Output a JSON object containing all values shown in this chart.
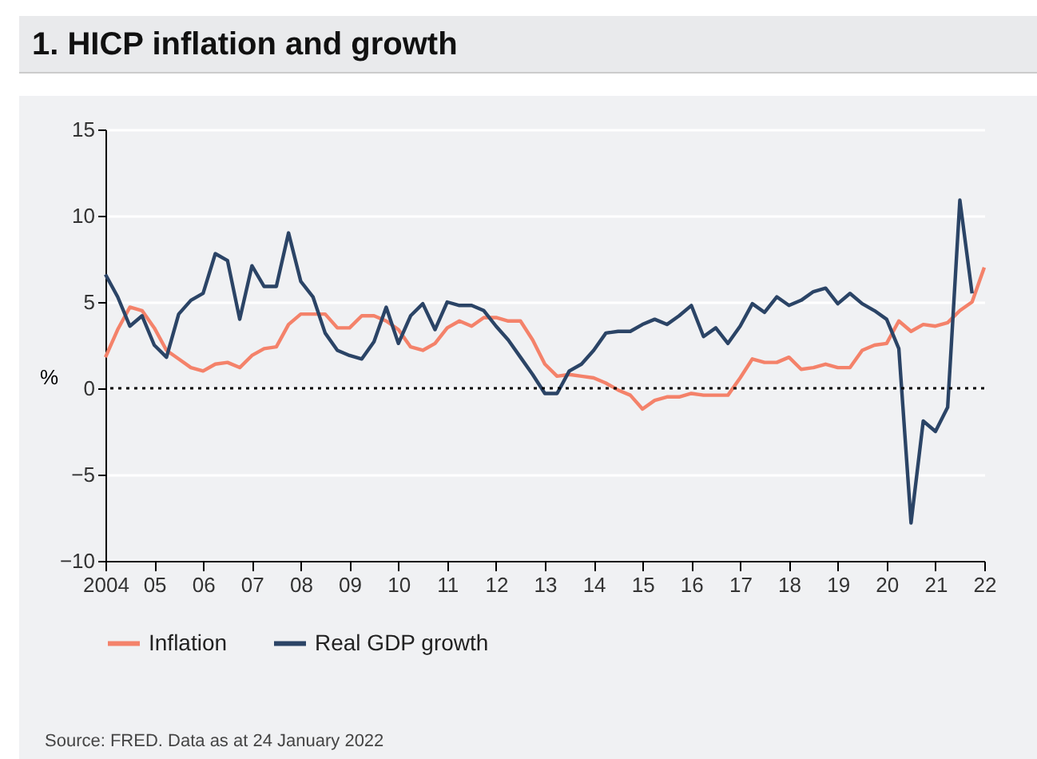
{
  "chart_data": {
    "type": "line",
    "title": "1. HICP inflation and growth",
    "ylabel": "%",
    "annotations": [
      "Source: FRED. Data as at 24 January 2022"
    ],
    "x": [
      2004,
      2004.25,
      2004.5,
      2004.75,
      2005,
      2005.25,
      2005.5,
      2005.75,
      2006,
      2006.25,
      2006.5,
      2006.75,
      2007,
      2007.25,
      2007.5,
      2007.75,
      2008,
      2008.25,
      2008.5,
      2008.75,
      2009,
      2009.25,
      2009.5,
      2009.75,
      2010,
      2010.25,
      2010.5,
      2010.75,
      2011,
      2011.25,
      2011.5,
      2011.75,
      2012,
      2012.25,
      2012.5,
      2012.75,
      2013,
      2013.25,
      2013.5,
      2013.75,
      2014,
      2014.25,
      2014.5,
      2014.75,
      2015,
      2015.25,
      2015.5,
      2015.75,
      2016,
      2016.25,
      2016.5,
      2016.75,
      2017,
      2017.25,
      2017.5,
      2017.75,
      2018,
      2018.25,
      2018.5,
      2018.75,
      2019,
      2019.25,
      2019.5,
      2019.75,
      2020,
      2020.25,
      2020.5,
      2020.75,
      2021,
      2021.25,
      2021.5,
      2021.75,
      2022
    ],
    "series": [
      {
        "name": "Inflation",
        "color": "#f4826a",
        "values": [
          1.8,
          3.4,
          4.7,
          4.5,
          3.5,
          2.2,
          1.7,
          1.2,
          1.0,
          1.4,
          1.5,
          1.2,
          1.9,
          2.3,
          2.4,
          3.7,
          4.3,
          4.3,
          4.3,
          3.5,
          3.5,
          4.2,
          4.2,
          3.9,
          3.4,
          2.4,
          2.2,
          2.6,
          3.5,
          3.9,
          3.6,
          4.1,
          4.1,
          3.9,
          3.9,
          2.8,
          1.4,
          0.7,
          0.8,
          0.7,
          0.6,
          0.3,
          -0.1,
          -0.4,
          -1.2,
          -0.7,
          -0.5,
          -0.5,
          -0.3,
          -0.4,
          -0.4,
          -0.4,
          0.6,
          1.7,
          1.5,
          1.5,
          1.8,
          1.1,
          1.2,
          1.4,
          1.2,
          1.2,
          2.2,
          2.5,
          2.6,
          3.9,
          3.3,
          3.7,
          3.6,
          3.8,
          4.5,
          5.0,
          7.0
        ]
      },
      {
        "name": "Real GDP growth",
        "color": "#2b4466",
        "values": [
          6.6,
          5.3,
          3.6,
          4.2,
          2.5,
          1.8,
          4.3,
          5.1,
          5.5,
          7.8,
          7.4,
          4.0,
          7.1,
          5.9,
          5.9,
          9.0,
          6.2,
          5.3,
          3.2,
          2.2,
          1.9,
          1.7,
          2.7,
          4.7,
          2.6,
          4.2,
          4.9,
          3.4,
          5.0,
          4.8,
          4.8,
          4.5,
          3.6,
          2.8,
          1.8,
          0.8,
          -0.3,
          -0.3,
          1.0,
          1.4,
          2.2,
          3.2,
          3.3,
          3.3,
          3.7,
          4.0,
          3.7,
          4.2,
          4.8,
          3.0,
          3.5,
          2.6,
          3.6,
          4.9,
          4.4,
          5.3,
          4.8,
          5.1,
          5.6,
          5.8,
          4.9,
          5.5,
          4.9,
          4.5,
          4.0,
          2.3,
          -7.8,
          -1.9,
          -2.5,
          -1.1,
          10.9,
          5.5,
          null
        ]
      }
    ],
    "xlim": [
      2004,
      2022
    ],
    "xticks": [
      {
        "value": 2004,
        "label": "2004"
      },
      {
        "value": 2005,
        "label": "05"
      },
      {
        "value": 2006,
        "label": "06"
      },
      {
        "value": 2007,
        "label": "07"
      },
      {
        "value": 2008,
        "label": "08"
      },
      {
        "value": 2009,
        "label": "09"
      },
      {
        "value": 2010,
        "label": "10"
      },
      {
        "value": 2011,
        "label": "11"
      },
      {
        "value": 2012,
        "label": "12"
      },
      {
        "value": 2013,
        "label": "13"
      },
      {
        "value": 2014,
        "label": "14"
      },
      {
        "value": 2015,
        "label": "15"
      },
      {
        "value": 2016,
        "label": "16"
      },
      {
        "value": 2017,
        "label": "17"
      },
      {
        "value": 2018,
        "label": "18"
      },
      {
        "value": 2019,
        "label": "19"
      },
      {
        "value": 2020,
        "label": "20"
      },
      {
        "value": 2021,
        "label": "21"
      },
      {
        "value": 2022,
        "label": "22"
      }
    ],
    "ylim": [
      -10,
      15
    ],
    "yticks": [
      -10,
      -5,
      0,
      5,
      10,
      15
    ],
    "ref_lines": [
      {
        "axis": "y",
        "value": 0,
        "color": "#000000",
        "line_style": "dotted"
      }
    ],
    "grid": "y",
    "legend": "bottom",
    "line_style": "solid"
  }
}
